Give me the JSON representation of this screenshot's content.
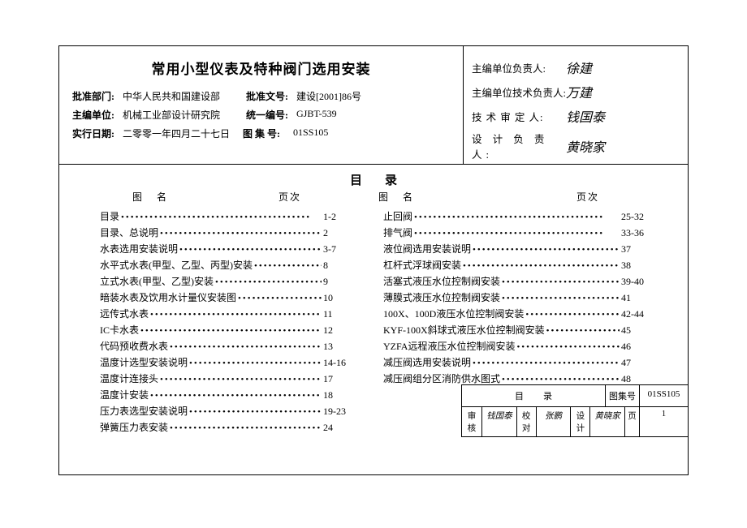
{
  "title_main": "常用小型仪表及特种阀门选用安装",
  "meta": {
    "row1": {
      "l1": "批准部门:",
      "v1": "中华人民共和国建设部",
      "l2": "批准文号:",
      "v2": "建设[2001]86号"
    },
    "row2": {
      "l1": "主编单位:",
      "v1": "机械工业部设计研究院",
      "l2": "统一编号:",
      "v2": "GJBT-539"
    },
    "row3": {
      "l1": "实行日期:",
      "v1": "二零零一年四月二十七日",
      "l2": "图 集 号:",
      "v2": "01SS105"
    }
  },
  "sigs": [
    {
      "label": "主编单位负责人:",
      "value": "徐建",
      "cls": ""
    },
    {
      "label": "主编单位技术负责人:",
      "value": "万建",
      "cls": ""
    },
    {
      "label": "技 术 审 定 人:",
      "value": "钱国泰",
      "cls": "sp1"
    },
    {
      "label": "设 计 负 责 人:",
      "value": "黄晓家",
      "cls": "sp2"
    }
  ],
  "toc_title": "目录",
  "head": {
    "name": "图名",
    "page": "页次"
  },
  "toc_left": [
    {
      "name": "目录",
      "page": "1-2"
    },
    {
      "name": "目录、总说明",
      "page": "2"
    },
    {
      "name": "水表选用安装说明",
      "page": "3-7"
    },
    {
      "name": "水平式水表(甲型、乙型、丙型)安装",
      "page": "8"
    },
    {
      "name": "立式水表(甲型、乙型)安装",
      "page": "9"
    },
    {
      "name": "暗装水表及饮用水计量仪安装图",
      "page": "10"
    },
    {
      "name": "远传式水表",
      "page": "11"
    },
    {
      "name": "IC卡水表",
      "page": "12"
    },
    {
      "name": "代码预收费水表",
      "page": "13"
    },
    {
      "name": "温度计选型安装说明",
      "page": "14-16"
    },
    {
      "name": "温度计连接头",
      "page": "17"
    },
    {
      "name": "温度计安装",
      "page": "18"
    },
    {
      "name": "压力表选型安装说明",
      "page": "19-23"
    },
    {
      "name": "弹簧压力表安装",
      "page": "24"
    }
  ],
  "toc_right": [
    {
      "name": "止回阀",
      "page": "25-32"
    },
    {
      "name": "排气阀",
      "page": "33-36"
    },
    {
      "name": "液位阀选用安装说明",
      "page": "37"
    },
    {
      "name": "杠杆式浮球阀安装",
      "page": "38"
    },
    {
      "name": "活塞式液压水位控制阀安装",
      "page": "39-40"
    },
    {
      "name": "薄膜式液压水位控制阀安装",
      "page": "41"
    },
    {
      "name": "100X、100D液压水位控制阀安装",
      "page": "42-44"
    },
    {
      "name": "KYF-100X斜球式液压水位控制阀安装",
      "page": "45"
    },
    {
      "name": "YZFA远程液压水位控制阀安装",
      "page": "46"
    },
    {
      "name": "减压阀选用安装说明",
      "page": "47"
    },
    {
      "name": "减压阀组分区消防供水图式",
      "page": "48"
    }
  ],
  "corner": {
    "title": "目录",
    "set_label": "图集号",
    "set_no": "01SS105",
    "c1": "审核",
    "c2": "钱国泰",
    "c3": "校对",
    "c4": "张鹏",
    "c5": "设计",
    "c6": "黄晓家",
    "c7": "页",
    "c8": "1"
  }
}
